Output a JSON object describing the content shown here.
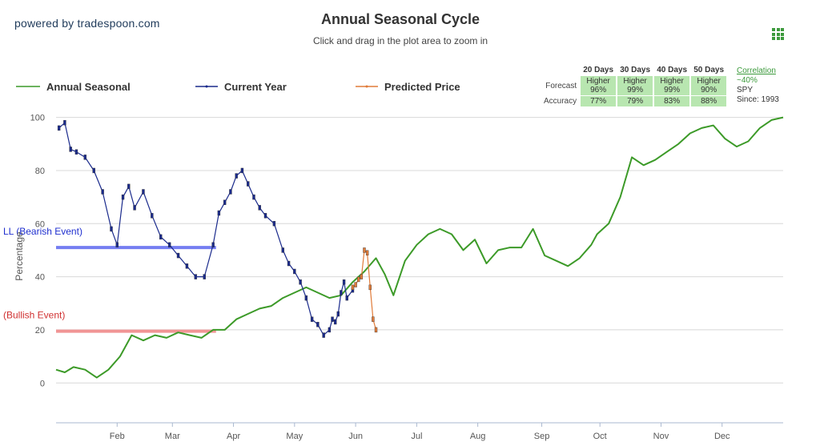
{
  "header": {
    "powered_by": "powered by tradespoon.com",
    "title": "Annual Seasonal Cycle",
    "subtitle": "Click and drag in the plot area to zoom in",
    "menu_icon": "grid-menu-icon"
  },
  "legend": [
    {
      "name": "Annual Seasonal",
      "color": "#3c9a28"
    },
    {
      "name": "Current Year",
      "color": "#1a2a8c"
    },
    {
      "name": "Predicted Price",
      "color": "#e07b39"
    }
  ],
  "stats": {
    "columns": [
      "20 Days",
      "30 Days",
      "40 Days",
      "50 Days"
    ],
    "forecast_label": "Forecast",
    "accuracy_label": "Accuracy",
    "forecast": [
      [
        "Higher",
        "96%"
      ],
      [
        "Higher",
        "99%"
      ],
      [
        "Higher",
        "99%"
      ],
      [
        "Higher",
        "90%"
      ]
    ],
    "accuracy": [
      "77%",
      "79%",
      "83%",
      "88%"
    ],
    "correlation_label": "Correlation",
    "correlation_value": "~40%",
    "symbol": "SPY",
    "since": "Since: 1993"
  },
  "chart_data": {
    "type": "line",
    "ylabel": "Percentage",
    "ylim": [
      -15,
      102
    ],
    "yticks": [
      0,
      20,
      40,
      60,
      80,
      100
    ],
    "x_unit": "trading day of year",
    "xlim": [
      0,
      250
    ],
    "xtick_labels": [
      {
        "label": "Feb",
        "x": 21
      },
      {
        "label": "Mar",
        "x": 40
      },
      {
        "label": "Apr",
        "x": 61
      },
      {
        "label": "May",
        "x": 82
      },
      {
        "label": "Jun",
        "x": 103
      },
      {
        "label": "Jul",
        "x": 124
      },
      {
        "label": "Aug",
        "x": 145
      },
      {
        "label": "Sep",
        "x": 167
      },
      {
        "label": "Oct",
        "x": 187
      },
      {
        "label": "Nov",
        "x": 208
      },
      {
        "label": "Dec",
        "x": 229
      }
    ],
    "grid": true,
    "legend_position": "top",
    "bands": [
      {
        "label": "LL (Bearish Event)",
        "y": 51,
        "x": [
          0,
          55
        ],
        "color": "#6670f0",
        "label_color": "#1f2fcf"
      },
      {
        "label": "(Bullish Event)",
        "y": 19.5,
        "x": [
          0,
          55
        ],
        "color": "#ef8a8a",
        "label_color": "#d03030"
      }
    ],
    "series": [
      {
        "name": "Annual Seasonal",
        "color": "#3c9a28",
        "x": [
          0,
          3,
          6,
          10,
          14,
          18,
          22,
          26,
          30,
          34,
          38,
          42,
          46,
          50,
          54,
          58,
          62,
          66,
          70,
          74,
          78,
          82,
          86,
          90,
          94,
          98,
          102,
          106,
          110,
          113,
          116,
          120,
          124,
          128,
          132,
          136,
          140,
          144,
          148,
          152,
          156,
          160,
          164,
          168,
          172,
          176,
          180,
          184,
          186,
          188,
          190,
          194,
          198,
          202,
          206,
          210,
          214,
          218,
          222,
          226,
          230,
          234,
          238,
          242,
          246,
          250
        ],
        "y": [
          5,
          4,
          6,
          5,
          2,
          5,
          10,
          18,
          16,
          18,
          17,
          19,
          18,
          17,
          20,
          20,
          24,
          26,
          28,
          29,
          32,
          34,
          36,
          34,
          32,
          33,
          38,
          42,
          47,
          41,
          33,
          46,
          52,
          56,
          58,
          56,
          50,
          54,
          45,
          50,
          51,
          51,
          58,
          48,
          46,
          44,
          47,
          52,
          56,
          58,
          60,
          70,
          85,
          82,
          84,
          87,
          90,
          94,
          96,
          97,
          92,
          89,
          91,
          96,
          99,
          100
        ]
      },
      {
        "name": "Current Year",
        "color": "#1a2a8c",
        "x": [
          1,
          3,
          5,
          7,
          10,
          13,
          16,
          19,
          21,
          23,
          25,
          27,
          30,
          33,
          36,
          39,
          42,
          45,
          48,
          51,
          54,
          56,
          58,
          60,
          62,
          64,
          66,
          68,
          70,
          72,
          75,
          78,
          80,
          82,
          84,
          86,
          88,
          90,
          92,
          94,
          95,
          96,
          97,
          98,
          99,
          100,
          102
        ],
        "y": [
          96,
          98,
          88,
          87,
          85,
          80,
          72,
          58,
          52,
          70,
          74,
          66,
          72,
          63,
          55,
          52,
          48,
          44,
          40,
          40,
          52,
          64,
          68,
          72,
          78,
          80,
          75,
          70,
          66,
          63,
          60,
          50,
          45,
          42,
          38,
          32,
          24,
          22,
          18,
          20,
          24,
          23,
          26,
          34,
          38,
          32,
          35
        ]
      },
      {
        "name": "Predicted Price",
        "color": "#e07b39",
        "x": [
          102,
          103,
          104,
          105,
          106,
          107,
          108,
          109,
          110
        ],
        "y": [
          36,
          37,
          39,
          40,
          50,
          49,
          36,
          24,
          20
        ]
      }
    ]
  }
}
